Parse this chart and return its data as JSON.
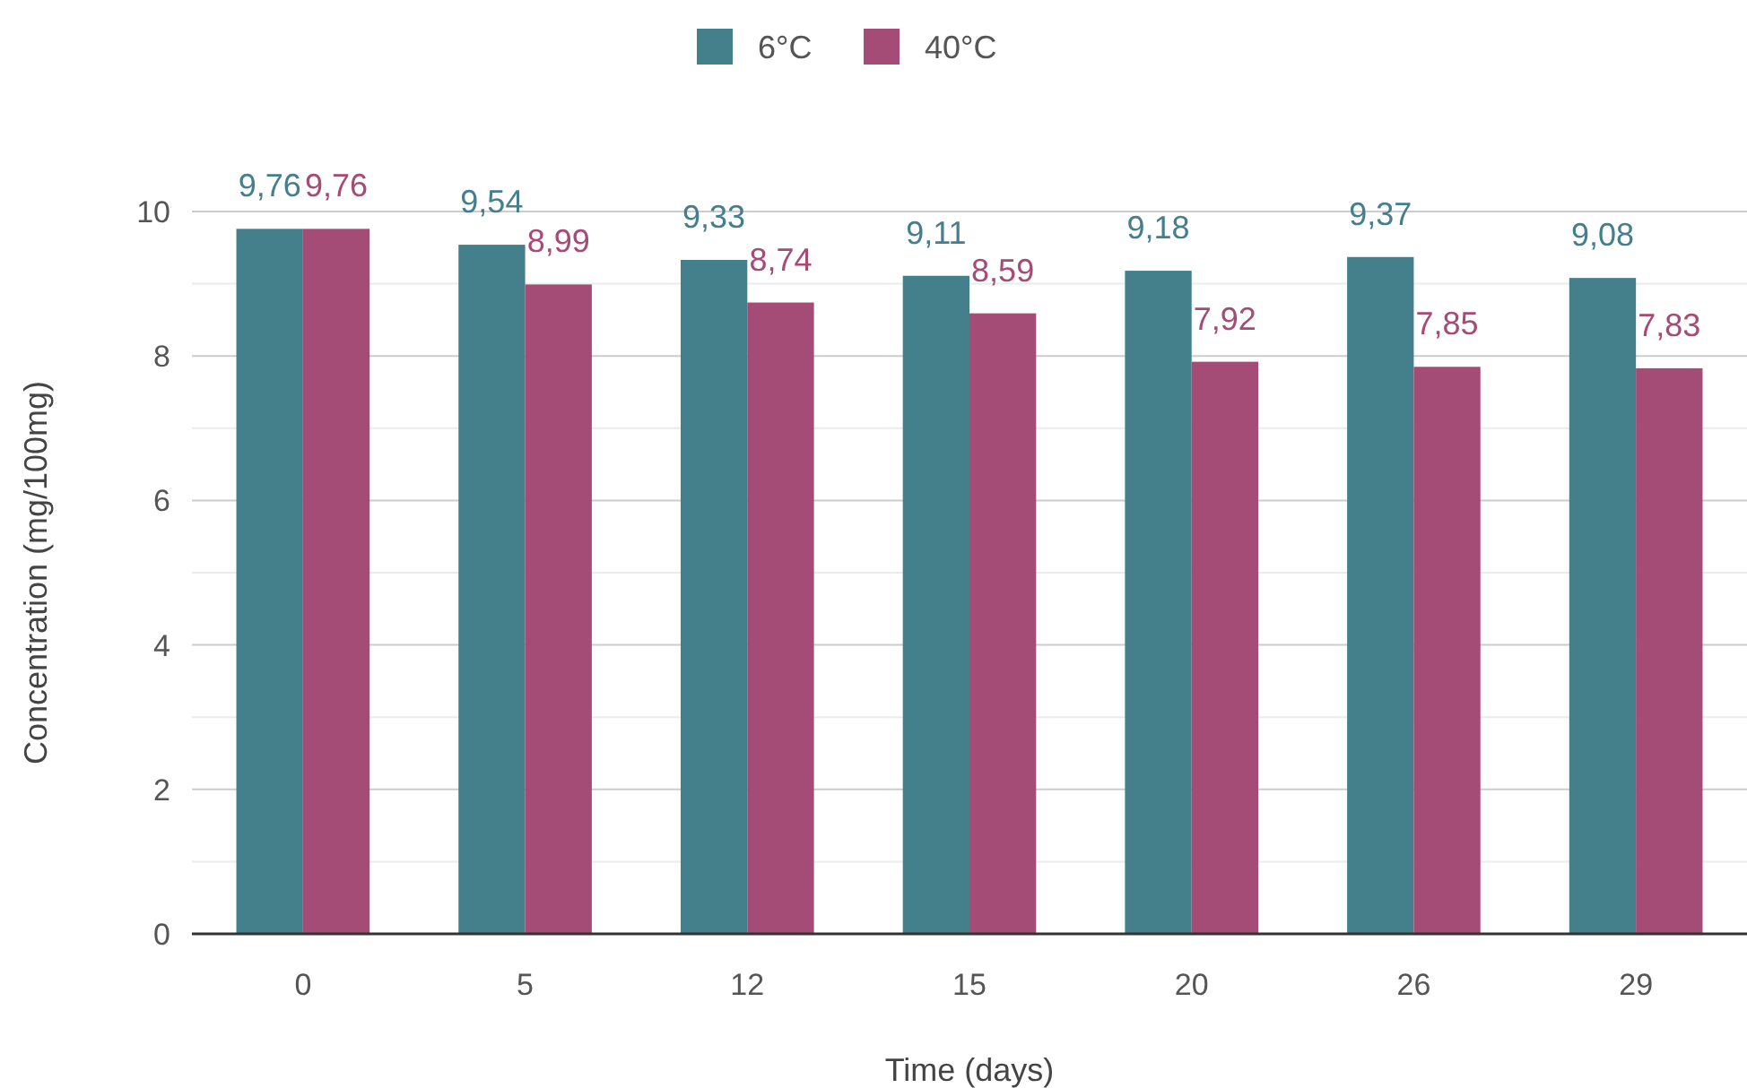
{
  "chart_data": {
    "type": "bar",
    "xlabel": "Time (days)",
    "ylabel": "Concentration (mg/100mg)",
    "categories": [
      "0",
      "5",
      "12",
      "15",
      "20",
      "26",
      "29"
    ],
    "series": [
      {
        "name": "6°C",
        "color": "#447f8c",
        "values": [
          9.76,
          9.54,
          9.33,
          9.11,
          9.18,
          9.37,
          9.08
        ],
        "value_labels": [
          "9,76",
          "9,54",
          "9,33",
          "9,11",
          "9,18",
          "9,37",
          "9,08"
        ]
      },
      {
        "name": "40°C",
        "color": "#a44b76",
        "values": [
          9.76,
          8.99,
          8.74,
          8.59,
          7.92,
          7.85,
          7.83
        ],
        "value_labels": [
          "9,76",
          "8,99",
          "8,74",
          "8,59",
          "7,92",
          "7,85",
          "7,83"
        ]
      }
    ],
    "ylim": [
      0,
      10
    ],
    "yticks": [
      0,
      {
        "value": 1,
        "label": null
      },
      2,
      {
        "value": 3,
        "label": null
      },
      4,
      {
        "value": 5,
        "label": null
      },
      6,
      {
        "value": 7,
        "label": null
      },
      8,
      {
        "value": 9,
        "label": null
      },
      10
    ],
    "grid": true,
    "legend": "top"
  }
}
